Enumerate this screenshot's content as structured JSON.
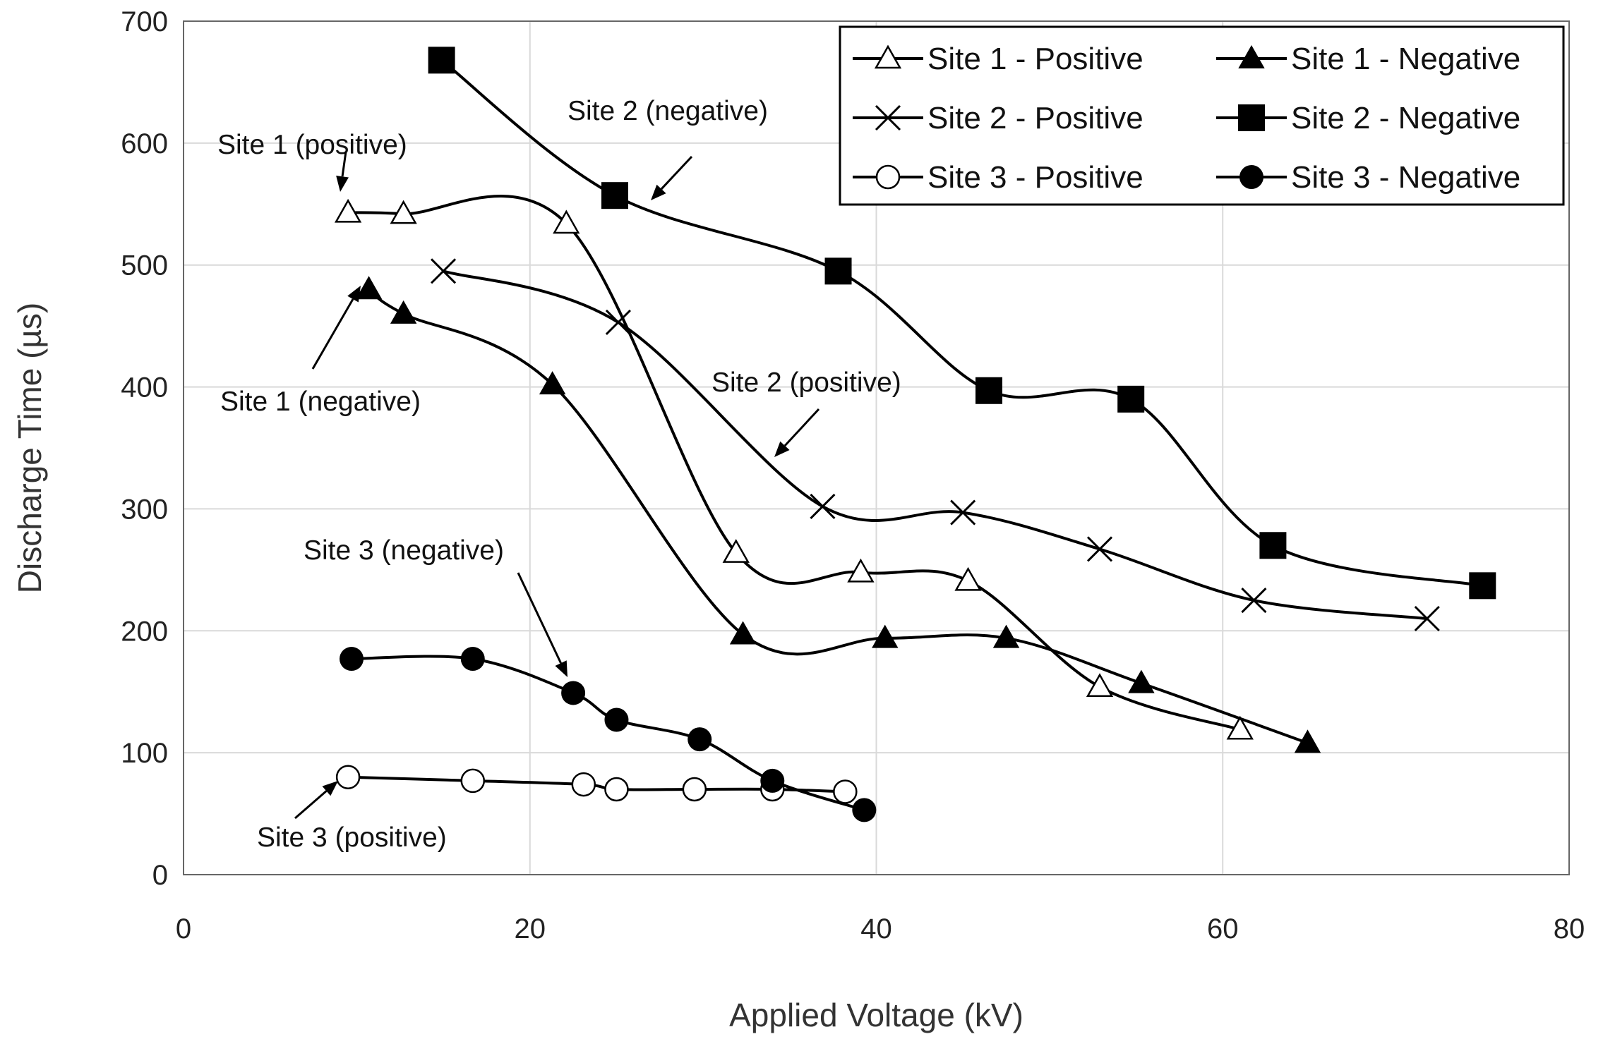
{
  "chart_data": {
    "type": "line",
    "xlabel": "Applied Voltage (kV)",
    "ylabel": "Discharge Time (µs)",
    "xlim": [
      0,
      80
    ],
    "ylim": [
      0,
      700
    ],
    "xticks": [
      0,
      20,
      40,
      60,
      80
    ],
    "yticks": [
      0,
      100,
      200,
      300,
      400,
      500,
      600,
      700
    ],
    "grid": true,
    "legend_position": "top-right",
    "series": [
      {
        "name": "Site 1 - Positive",
        "marker": "triangle-open",
        "x": [
          9.5,
          12.7,
          22.1,
          31.9,
          39.1,
          45.3,
          52.9,
          61.0
        ],
        "y": [
          543,
          542,
          534,
          264,
          248,
          241,
          154,
          119
        ]
      },
      {
        "name": "Site 1 - Negative",
        "marker": "triangle-filled",
        "x": [
          10.7,
          12.7,
          21.3,
          32.3,
          40.5,
          47.5,
          55.3,
          64.9
        ],
        "y": [
          480,
          460,
          402,
          197,
          194,
          194,
          157,
          108
        ]
      },
      {
        "name": "Site 2 - Positive",
        "marker": "x",
        "x": [
          15.0,
          25.1,
          36.9,
          45.0,
          52.9,
          61.8,
          71.8
        ],
        "y": [
          495,
          453,
          302,
          297,
          267,
          225,
          210
        ]
      },
      {
        "name": "Site 2 - Negative",
        "marker": "square-filled",
        "x": [
          14.9,
          24.9,
          37.8,
          46.5,
          54.7,
          62.9,
          75.0
        ],
        "y": [
          668,
          557,
          495,
          397,
          390,
          270,
          237
        ]
      },
      {
        "name": "Site 3 - Positive",
        "marker": "circle-open",
        "x": [
          9.5,
          16.7,
          23.1,
          25.0,
          29.5,
          34.0,
          38.2
        ],
        "y": [
          80,
          77,
          74,
          70,
          70,
          70,
          68
        ]
      },
      {
        "name": "Site 3 - Negative",
        "marker": "circle-filled",
        "x": [
          9.7,
          16.7,
          22.5,
          25.0,
          29.8,
          34.0,
          39.3
        ],
        "y": [
          177,
          177,
          149,
          127,
          111,
          77,
          53
        ]
      }
    ],
    "annotations": [
      {
        "text": "Site 1 (positive)",
        "arrow_to": [
          9.5,
          543
        ]
      },
      {
        "text": "Site 2 (negative)",
        "arrow_to": [
          26.8,
          555
        ]
      },
      {
        "text": "Site 1 (negative)",
        "arrow_to": [
          9.8,
          478
        ]
      },
      {
        "text": "Site 2 (positive)",
        "arrow_to": [
          34.2,
          342
        ]
      },
      {
        "text": "Site 3 (negative)",
        "arrow_to": [
          22.3,
          164
        ]
      },
      {
        "text": "Site 3 (positive)",
        "arrow_to": [
          9.0,
          80
        ]
      }
    ]
  }
}
